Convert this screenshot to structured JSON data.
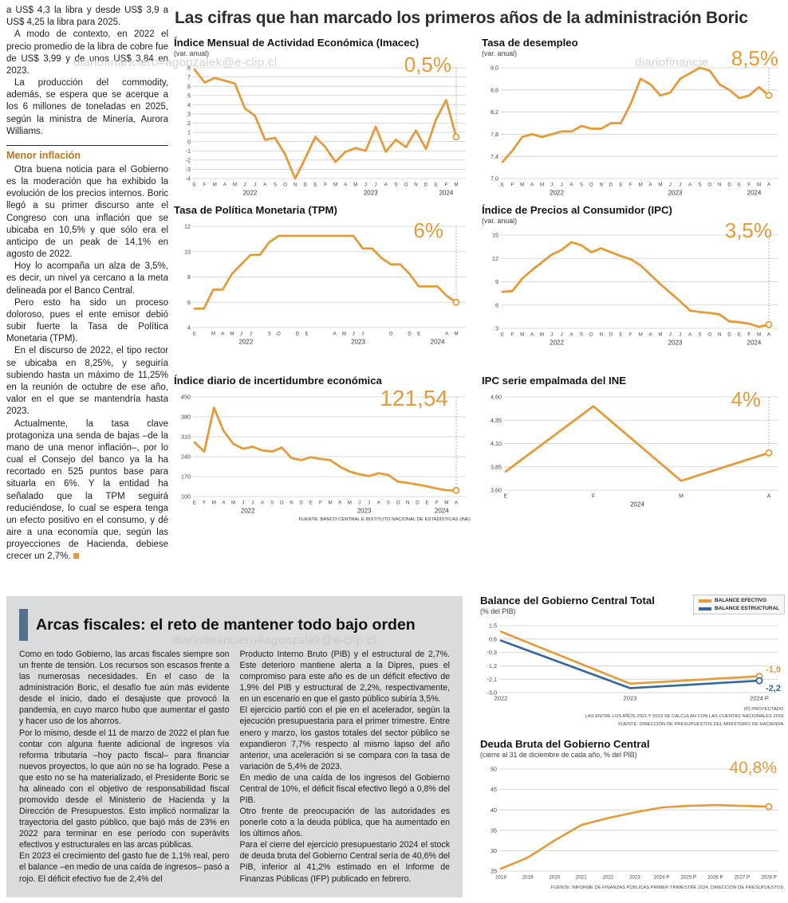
{
  "headline": "Las cifras que han marcado los primeros años de la administración Boric",
  "watermarks": [
    "diariofinanciero#agonzalek@e-clip.cl",
    "diariofinancie",
    "diariofinanciero#agonzalek@e-clip.cl"
  ],
  "left_column": {
    "paras": [
      "a US$ 4,3 la libra y desde US$ 3,9 a US$ 4,25 la libra para 2025.",
      "A modo de contexto, en 2022 el precio promedio de la libra de cobre fue de US$ 3,99 y de unos US$ 3,84 en 2023.",
      "La producción del commodity, además, se espera que se acerque a los 6 millones de toneladas en 2025, según la ministra de Minería, Aurora Williams."
    ],
    "subhead": "Menor inflación",
    "paras2": [
      "Otra buena noticia para el Gobierno es la moderación que ha exhibido la evolución de los precios internos. Boric llegó a su primer discurso ante el Congreso con una inflación que se ubicaba en 10,5% y que sólo era el anticipo de un peak de 14,1% en agosto de 2022.",
      "Hoy lo acompaña un alza de 3,5%, es decir, un nivel ya cercano a la meta delineada por el Banco Central.",
      "Pero esto ha sido un proceso doloroso, pues el ente emisor debió subir fuerte la Tasa de Política Monetaria (TPM).",
      "En el discurso de 2022, el tipo rector se ubicaba en 8,25%, y seguiría subiendo hasta un máximo de 11,25% en la reunión de octubre de ese año, valor en el que se mantendría hasta 2023.",
      "Actualmente, la tasa clave protagoniza una senda de bajas –de la mano de una menor inflación–, por lo cual el Consejo del banco ya la ha recortado en 525 puntos base para situarla en 6%. Y la entidad ha señalado que la TPM seguirá reduciéndose, lo cual se espera tenga un efecto positivo en el consumo, y dé aire a una economía que, según las proyecciones de Hacienda, debiese crecer un 2,7%."
    ]
  },
  "fiscal": {
    "headline": "Arcas fiscales: el reto de mantener todo bajo orden",
    "col1": [
      "Como en todo Gobierno, las arcas fiscales siempre son un frente de tensión. Los recursos son escasos frente a las numerosas necesidades. En el caso de la administración Boric, el desafío fue aún más evidente desde el inicio, dado el desajuste que provocó la pandemia, en cuyo marco hubo que aumentar el gasto y hacer uso de los ahorros.",
      "Por lo mismo, desde el 11 de marzo de 2022 el plan fue contar con alguna fuente adicional de ingresos vía reforma tributaria –hoy pacto fiscal– para financiar nuevos proyectos, lo que aún no se ha logrado. Pese a que esto no se ha materializado, el Presidente Boric se ha alineado con el objetivo de responsabilidad fiscal promovido desde el Ministerio de Hacienda y la Dirección de Presupuestos. Esto implicó normalizar la trayectoria del gasto público, que bajó más de 23% en 2022 para terminar en ese período con superávits efectivos y estructurales en las arcas públicas.",
      "En 2023 el crecimiento del gasto fue de 1,1% real, pero el balance –en medio de una caída de ingresos– pasó a rojo. El déficit efectivo fue de 2,4% del"
    ],
    "col2": [
      "Producto Interno Bruto (PIB) y el estructural de 2,7%. Este deterioro mantiene alerta a la Dipres, pues el compromiso para este año es de un déficit efectivo de 1,9% del PIB y estructural de 2,2%, respectivamente, en un escenario en que el gasto público subiría 3,5%.",
      "El ejercicio partió con el pie en el acelerador, según la ejecución presupuestaria para el primer trimestre. Entre enero y marzo, los gastos totales del sector público se expandieron 7,7% respecto al mismo lapso del año anterior, una aceleración si se compara con la tasa de variación de 5,4% de 2023.",
      "En medio de una caída de los ingresos del Gobierno Central de 10%, el déficit fiscal efectivo llegó a 0,8% del PIB.",
      "Otro frente de preocupación de las autoridades es ponerle coto a la deuda pública, que ha aumentado en los últimos años.",
      "Para el cierre del ejercicio presupuestario 2024 el stock de deuda bruta del Gobierno Central sería de 40,6% del PIB, inferior al 41,2% estimado en el Informe de Finanzas Públicas (IFP) publicado en febrero."
    ]
  },
  "chart_data": [
    {
      "type": "line",
      "title": "Índice Mensual de Actividad Económica (Imacec)",
      "subtitle": "(var. anual)",
      "big_value": "0,5%",
      "ylim": [
        -4,
        8
      ],
      "yticks": [
        {
          "v": 8,
          "l": "8"
        },
        {
          "v": 7,
          "l": "7"
        },
        {
          "v": 6,
          "l": "6"
        },
        {
          "v": 5,
          "l": "5"
        },
        {
          "v": 4,
          "l": "4"
        },
        {
          "v": 3,
          "l": "3"
        },
        {
          "v": 2,
          "l": "2"
        },
        {
          "v": 1,
          "l": "1"
        },
        {
          "v": 0,
          "l": "0"
        },
        {
          "v": -1,
          "l": "-1"
        },
        {
          "v": -2,
          "l": "-2"
        },
        {
          "v": -3,
          "l": "-3"
        },
        {
          "v": -4,
          "l": "-4"
        }
      ],
      "xticks": [
        "E",
        "F",
        "M",
        "A",
        "M",
        "J",
        "J",
        "A",
        "S",
        "O",
        "N",
        "D",
        "E",
        "F",
        "M",
        "A",
        "M",
        "J",
        "J",
        "A",
        "S",
        "O",
        "N",
        "D",
        "E",
        "F",
        "M"
      ],
      "x_groups": [
        {
          "label": "2022",
          "span": 12
        },
        {
          "label": "2023",
          "span": 12
        },
        {
          "label": "2024",
          "span": 3
        }
      ],
      "series": [
        {
          "name": "Imacec var. anual %",
          "color": "#E49B3A",
          "values": [
            7.8,
            6.4,
            6.9,
            6.6,
            6.3,
            3.6,
            2.8,
            0.2,
            0.4,
            -1.4,
            -4.0,
            -1.8,
            0.5,
            -0.6,
            -2.2,
            -1.1,
            -0.7,
            -1.0,
            1.6,
            -1.1,
            0.2,
            -0.6,
            1.2,
            -0.8,
            2.4,
            4.5,
            0.5
          ]
        }
      ],
      "dash": true
    },
    {
      "type": "line",
      "title": "Tasa de desempleo",
      "subtitle": "(var. anual)",
      "big_value": "8,5%",
      "ylim": [
        7.0,
        9.0
      ],
      "yticks": [
        {
          "v": 9.0,
          "l": "9,0"
        },
        {
          "v": 8.6,
          "l": "8,6"
        },
        {
          "v": 8.2,
          "l": "8,2"
        },
        {
          "v": 7.8,
          "l": "7,8"
        },
        {
          "v": 7.4,
          "l": "7,4"
        },
        {
          "v": 7.0,
          "l": "7,0"
        }
      ],
      "xticks": [
        "E",
        "F",
        "M",
        "A",
        "M",
        "J",
        "J",
        "A",
        "S",
        "O",
        "N",
        "D",
        "E",
        "F",
        "M",
        "A",
        "M",
        "J",
        "J",
        "A",
        "S",
        "O",
        "N",
        "D",
        "E",
        "F",
        "M",
        "A"
      ],
      "x_groups": [
        {
          "label": "2022",
          "span": 12
        },
        {
          "label": "2023",
          "span": 12
        },
        {
          "label": "2024",
          "span": 4
        }
      ],
      "series": [
        {
          "name": "Tasa de desempleo %",
          "color": "#E49B3A",
          "values": [
            7.3,
            7.5,
            7.75,
            7.8,
            7.75,
            7.8,
            7.85,
            7.85,
            7.95,
            7.9,
            7.9,
            8.0,
            8.0,
            8.35,
            8.8,
            8.7,
            8.5,
            8.55,
            8.8,
            8.9,
            9.0,
            8.95,
            8.7,
            8.6,
            8.45,
            8.5,
            8.65,
            8.5
          ]
        }
      ],
      "dash": true
    },
    {
      "type": "line",
      "title": "Tasa de Política Monetaria (TPM)",
      "big_value": "6%",
      "ylim": [
        4,
        12
      ],
      "yticks": [
        {
          "v": 12,
          "l": "12"
        },
        {
          "v": 10,
          "l": "10"
        },
        {
          "v": 8,
          "l": "8"
        },
        {
          "v": 6,
          "l": "6"
        },
        {
          "v": 4,
          "l": "4"
        }
      ],
      "xticks": [
        "E",
        "",
        "M",
        "A",
        "M",
        "J",
        "J",
        "",
        "S",
        "O",
        "",
        "D",
        "E",
        "",
        "",
        "A",
        "M",
        "J",
        "J",
        "",
        "",
        "O",
        "",
        "D",
        "E",
        "",
        "",
        "A",
        "M"
      ],
      "x_groups": [
        {
          "label": "2022",
          "span": 12
        },
        {
          "label": "2023",
          "span": 12
        },
        {
          "label": "2024",
          "span": 5
        }
      ],
      "series": [
        {
          "name": "TPM %",
          "color": "#E49B3A",
          "values": [
            5.5,
            5.5,
            7.0,
            7.0,
            8.25,
            9.0,
            9.75,
            9.75,
            10.75,
            11.25,
            11.25,
            11.25,
            11.25,
            11.25,
            11.25,
            11.25,
            11.25,
            11.25,
            10.25,
            10.25,
            9.5,
            9.0,
            9.0,
            8.25,
            7.25,
            7.25,
            7.25,
            6.5,
            6.0
          ]
        }
      ],
      "dash": true
    },
    {
      "type": "line",
      "title": "Índice de Precios al Consumidor (IPC)",
      "subtitle": "(var. anual)",
      "big_value": "3,5%",
      "ylim": [
        3,
        15
      ],
      "yticks": [
        {
          "v": 15,
          "l": "15"
        },
        {
          "v": 12,
          "l": "12"
        },
        {
          "v": 9,
          "l": "9"
        },
        {
          "v": 6,
          "l": "6"
        },
        {
          "v": 3,
          "l": "3"
        }
      ],
      "xticks": [
        "E",
        "F",
        "M",
        "A",
        "M",
        "J",
        "J",
        "A",
        "S",
        "O",
        "N",
        "D",
        "E",
        "F",
        "M",
        "A",
        "M",
        "J",
        "J",
        "A",
        "S",
        "O",
        "N",
        "D",
        "E",
        "F",
        "M",
        "A"
      ],
      "x_groups": [
        {
          "label": "2022",
          "span": 12
        },
        {
          "label": "2023",
          "span": 12
        },
        {
          "label": "2024",
          "span": 4
        }
      ],
      "series": [
        {
          "name": "IPC var. anual %",
          "color": "#E49B3A",
          "values": [
            7.7,
            7.8,
            9.4,
            10.5,
            11.5,
            12.5,
            13.1,
            14.1,
            13.7,
            12.8,
            13.3,
            12.8,
            12.3,
            11.9,
            11.1,
            9.9,
            8.7,
            7.6,
            6.5,
            5.3,
            5.1,
            5.0,
            4.8,
            3.9,
            3.8,
            3.6,
            3.2,
            3.5
          ]
        }
      ],
      "dash": true
    },
    {
      "type": "line",
      "title": "Índice diario de incertidumbre económica",
      "big_value": "121,54",
      "ylim": [
        100,
        450
      ],
      "yticks": [
        {
          "v": 450,
          "l": "450"
        },
        {
          "v": 380,
          "l": "380"
        },
        {
          "v": 310,
          "l": "310"
        },
        {
          "v": 240,
          "l": "240"
        },
        {
          "v": 170,
          "l": "170"
        },
        {
          "v": 100,
          "l": "100"
        }
      ],
      "xticks": [
        "E",
        "F",
        "M",
        "A",
        "M",
        "J",
        "J",
        "A",
        "S",
        "O",
        "N",
        "D",
        "E",
        "F",
        "M",
        "A",
        "M",
        "J",
        "J",
        "A",
        "S",
        "O",
        "N",
        "D",
        "E",
        "F",
        "M",
        "A"
      ],
      "x_groups": [
        {
          "label": "2022",
          "span": 12
        },
        {
          "label": "2023",
          "span": 12
        },
        {
          "label": "2024",
          "span": 4
        }
      ],
      "series": [
        {
          "name": "Índice de incertidumbre",
          "color": "#E49B3A",
          "values": [
            290,
            258,
            412,
            330,
            285,
            268,
            275,
            262,
            258,
            272,
            235,
            228,
            238,
            232,
            228,
            205,
            188,
            178,
            172,
            182,
            176,
            152,
            148,
            142,
            136,
            128,
            122,
            121.54
          ]
        }
      ],
      "dash": true,
      "source": "FUENTE: BANCO CENTRAL E INSTITUTO NACIONAL DE ESTADÍSTICAS (INE)"
    },
    {
      "type": "line",
      "title": "IPC serie empalmada del INE",
      "big_value": "4%",
      "ylim": [
        3.6,
        4.6
      ],
      "yticks": [
        {
          "v": 4.6,
          "l": "4,60"
        },
        {
          "v": 4.35,
          "l": "4,35"
        },
        {
          "v": 4.1,
          "l": "4,10"
        },
        {
          "v": 3.85,
          "l": "3,85"
        },
        {
          "v": 3.6,
          "l": "3,60"
        }
      ],
      "xticks": [
        "E",
        "F",
        "M",
        "A"
      ],
      "x_groups": [
        {
          "label": "2024",
          "span": 4
        }
      ],
      "series": [
        {
          "name": "IPC serie empalmada %",
          "color": "#E49B3A",
          "values": [
            3.8,
            4.5,
            3.7,
            4.0
          ]
        }
      ],
      "dash": true,
      "ml": 30,
      "xfs": 7
    },
    {
      "type": "line",
      "title": "Balance del Gobierno Central Total",
      "subtitle": "(% del PIB)",
      "ylim": [
        -3.0,
        1.5
      ],
      "yticks": [
        {
          "v": 1.5,
          "l": "1,5"
        },
        {
          "v": 0.6,
          "l": "0,6"
        },
        {
          "v": -0.3,
          "l": "-0,3"
        },
        {
          "v": -1.2,
          "l": "-1,2"
        },
        {
          "v": -2.1,
          "l": "-2,1"
        },
        {
          "v": -3.0,
          "l": "-3,0"
        }
      ],
      "xticks": [
        "2022",
        "2023",
        "2024 P"
      ],
      "series": [
        {
          "name": "BALANCE EFECTIVO",
          "color": "#E49B3A",
          "values": [
            1.1,
            -2.4,
            -1.9
          ]
        },
        {
          "name": "BALANCE ESTRUCTURAL",
          "color": "#33679E",
          "values": [
            0.5,
            -2.7,
            -2.2
          ]
        }
      ],
      "end_labels": [
        {
          "text": "-1,9",
          "dy": -5
        },
        {
          "text": "-2,2",
          "dy": 13
        }
      ],
      "footnotes": [
        "(P) PROYECTADO.",
        "LAS ENTRE LOS AÑOS 2021 Y 2023 SE CALCULAN CON LAS CUENTAS NACIONALES 2018.",
        "FUENTE: DIRECCIÓN DE PRESUPUESTOS DEL MINISTERIO DE HACIENDA."
      ],
      "lw": 2.6,
      "mr": 28,
      "xfs": 7.5
    },
    {
      "type": "line",
      "title": "Deuda Bruta del Gobierno Central",
      "subtitle": "(cierre al 31 de diciembre de cada año, % del PIB)",
      "big_value": "40,8%",
      "ylim": [
        25,
        50
      ],
      "yticks": [
        {
          "v": 50,
          "l": "50"
        },
        {
          "v": 45,
          "l": "45"
        },
        {
          "v": 40,
          "l": "40"
        },
        {
          "v": 35,
          "l": "35"
        },
        {
          "v": 30,
          "l": "30"
        },
        {
          "v": 25,
          "l": "25"
        }
      ],
      "xticks": [
        "2018",
        "2019",
        "2020",
        "2021",
        "2022",
        "2023",
        "2024 P",
        "2025 P",
        "2026 P",
        "2027 P",
        "2028 P"
      ],
      "series": [
        {
          "name": "Deuda bruta % del PIB",
          "color": "#E49B3A",
          "values": [
            25.6,
            28.3,
            32.5,
            36.3,
            38.0,
            39.4,
            40.6,
            41.0,
            41.2,
            41.0,
            40.8
          ]
        }
      ],
      "footnote": "FUENTE: INFORME DE FINANZAS PÚBLICAS PRIMER TRIMESTRE 2024, DIRECCIÓN DE PRESUPUESTOS.",
      "lw": 2.6,
      "xfs": 6.2
    }
  ]
}
